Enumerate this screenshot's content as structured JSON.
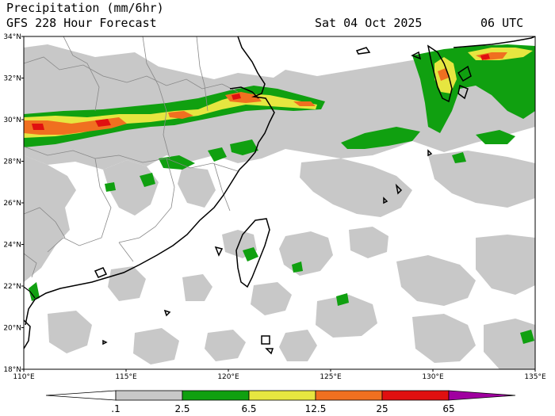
{
  "header": {
    "title": "Precipitation (mm/6hr)",
    "subtitle": "GFS 228 Hour Forecast",
    "valid_date": "Sat 04 Oct 2025",
    "valid_time": "06 UTC"
  },
  "axes": {
    "lat_labels": [
      "34°N",
      "32°N",
      "30°N",
      "28°N",
      "26°N",
      "24°N",
      "22°N",
      "20°N",
      "18°N"
    ],
    "lon_labels": [
      "110°E",
      "115°E",
      "120°E",
      "125°E",
      "130°E",
      "135°E"
    ]
  },
  "colorbar": {
    "labels": [
      ".1",
      "2.5",
      "6.5",
      "12.5",
      "25",
      "65"
    ],
    "colors": {
      "c0": "#ffffff",
      "c1": "#c8c8c8",
      "c2": "#10a010",
      "c3": "#e6e640",
      "c4": "#f07020",
      "c5": "#e01010",
      "c6": "#a000a0"
    }
  }
}
